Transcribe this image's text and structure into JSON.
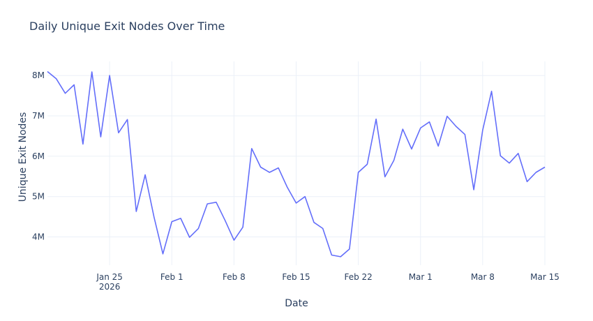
{
  "chart_data": {
    "type": "line",
    "title": "Daily Unique Exit Nodes Over Time",
    "xlabel": "Date",
    "ylabel": "Unique Exit Nodes",
    "x_tick_labels": [
      {
        "date": "2026-01-25",
        "text": "Jan 25",
        "subtext": "2026"
      },
      {
        "date": "2026-02-01",
        "text": "Feb 1"
      },
      {
        "date": "2026-02-08",
        "text": "Feb 8"
      },
      {
        "date": "2026-02-15",
        "text": "Feb 15"
      },
      {
        "date": "2026-02-22",
        "text": "Feb 22"
      },
      {
        "date": "2026-03-01",
        "text": "Mar 1"
      },
      {
        "date": "2026-03-08",
        "text": "Mar 8"
      },
      {
        "date": "2026-03-15",
        "text": "Mar 15"
      }
    ],
    "y_ticks": [
      {
        "value": 4000000,
        "text": "4M"
      },
      {
        "value": 5000000,
        "text": "5M"
      },
      {
        "value": 6000000,
        "text": "6M"
      },
      {
        "value": 7000000,
        "text": "7M"
      },
      {
        "value": 8000000,
        "text": "8M"
      }
    ],
    "xlim": [
      "2026-01-18",
      "2026-03-15"
    ],
    "ylim": [
      3300000,
      8350000
    ],
    "grid": true,
    "line_color": "#636efa",
    "series": [
      {
        "x": [
          "2026-01-18",
          "2026-01-19",
          "2026-01-20",
          "2026-01-21",
          "2026-01-22",
          "2026-01-23",
          "2026-01-24",
          "2026-01-25",
          "2026-01-26",
          "2026-01-27",
          "2026-01-28",
          "2026-01-29",
          "2026-01-30",
          "2026-01-31",
          "2026-02-01",
          "2026-02-02",
          "2026-02-03",
          "2026-02-04",
          "2026-02-05",
          "2026-02-06",
          "2026-02-07",
          "2026-02-08",
          "2026-02-09",
          "2026-02-10",
          "2026-02-11",
          "2026-02-12",
          "2026-02-13",
          "2026-02-14",
          "2026-02-15",
          "2026-02-16",
          "2026-02-17",
          "2026-02-18",
          "2026-02-19",
          "2026-02-20",
          "2026-02-21",
          "2026-02-22",
          "2026-02-23",
          "2026-02-24",
          "2026-02-25",
          "2026-02-26",
          "2026-02-27",
          "2026-02-28",
          "2026-03-01",
          "2026-03-02",
          "2026-03-03",
          "2026-03-04",
          "2026-03-05",
          "2026-03-06",
          "2026-03-07",
          "2026-03-08",
          "2026-03-09",
          "2026-03-10",
          "2026-03-11",
          "2026-03-12",
          "2026-03-13",
          "2026-03-14",
          "2026-03-15"
        ],
        "y": [
          8100000,
          7920000,
          7560000,
          7770000,
          6300000,
          8090000,
          6480000,
          8000000,
          6580000,
          6910000,
          4630000,
          5540000,
          4490000,
          3580000,
          4380000,
          4460000,
          3990000,
          4210000,
          4820000,
          4860000,
          4410000,
          3920000,
          4240000,
          6190000,
          5730000,
          5600000,
          5710000,
          5230000,
          4840000,
          5000000,
          4360000,
          4210000,
          3550000,
          3510000,
          3700000,
          5600000,
          5800000,
          6920000,
          5490000,
          5900000,
          6670000,
          6180000,
          6700000,
          6850000,
          6250000,
          6990000,
          6740000,
          6540000,
          5170000,
          6650000,
          7610000,
          6010000,
          5830000,
          6070000,
          5370000,
          5600000,
          5730000
        ]
      }
    ]
  }
}
